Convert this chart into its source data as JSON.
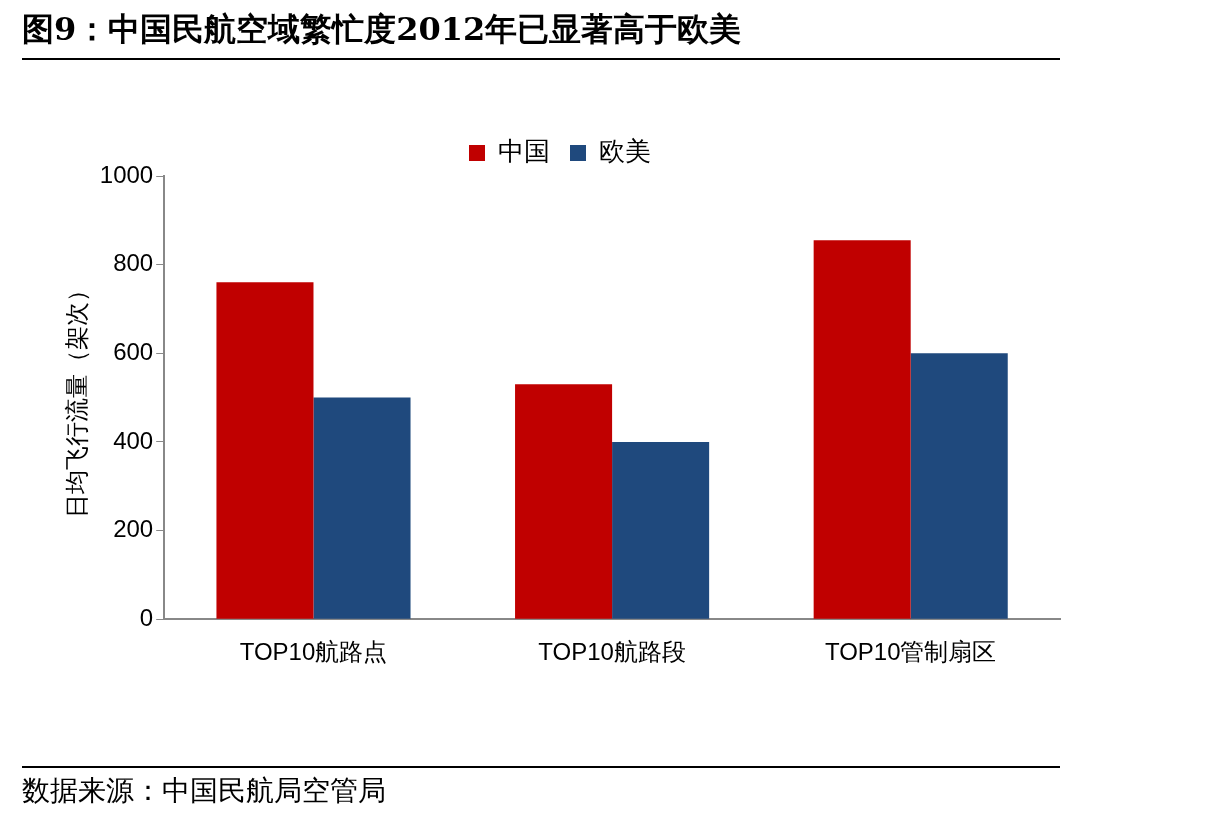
{
  "chart_data": {
    "type": "bar",
    "title": "图9：中国民航空域繁忙度2012年已显著高于欧美",
    "ylabel": "日均飞行流量（架次）",
    "categories": [
      "TOP10航路点",
      "TOP10航路段",
      "TOP10管制扇区"
    ],
    "series": [
      {
        "name": "中国",
        "color": "#c00000",
        "values": [
          760,
          530,
          855
        ]
      },
      {
        "name": "欧美",
        "color": "#1f497d",
        "values": [
          500,
          400,
          600
        ]
      }
    ],
    "ylim": [
      0,
      1000
    ],
    "yticks": [
      0,
      200,
      400,
      600,
      800,
      1000
    ],
    "grid": false,
    "legend": "top",
    "annotations": [
      "数据来源：中国民航局空管局"
    ]
  }
}
